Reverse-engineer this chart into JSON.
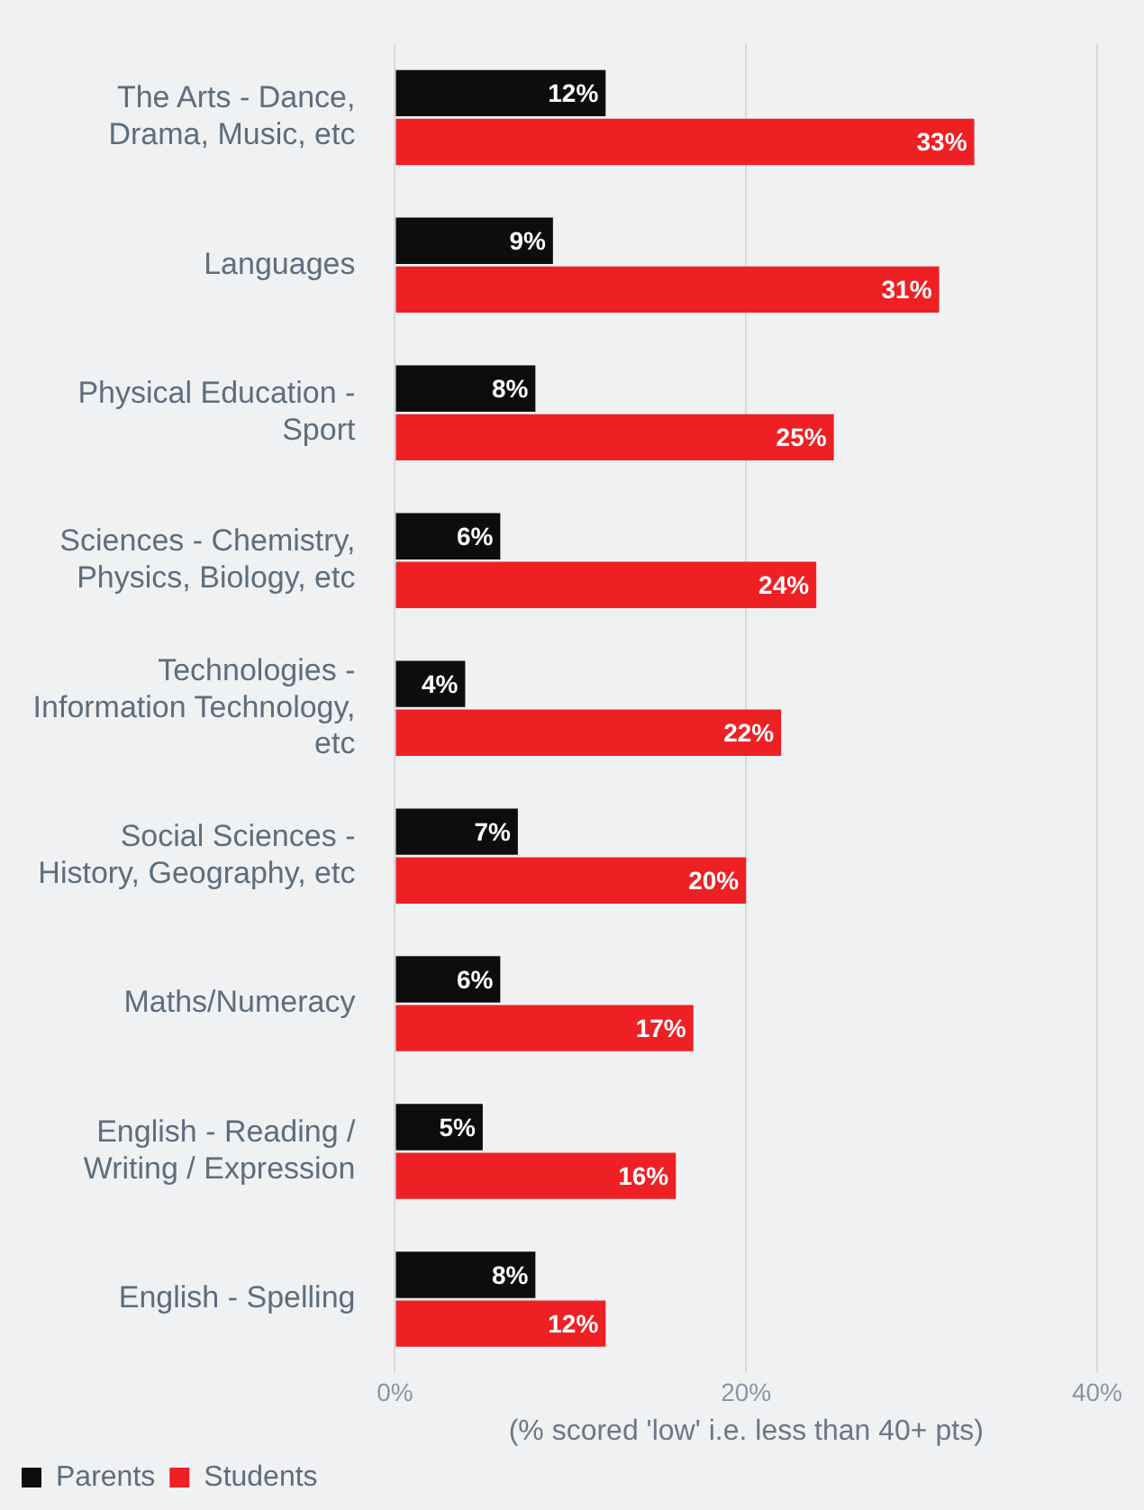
{
  "chart_data": {
    "type": "bar",
    "orientation": "horizontal",
    "categories": [
      "The Arts - Dance, Drama, Music, etc",
      "Languages",
      "Physical Education - Sport",
      "Sciences - Chemistry, Physics, Biology, etc",
      "Technologies - Information Technology, etc",
      "Social Sciences - History, Geography, etc",
      "Maths/Numeracy",
      "English - Reading / Writing / Expression",
      "English - Spelling"
    ],
    "series": [
      {
        "name": "Parents",
        "color": "#0d0d0d",
        "values": [
          12,
          9,
          8,
          6,
          4,
          7,
          6,
          5,
          8
        ],
        "value_labels": [
          "12%",
          "9%",
          "8%",
          "6%",
          "4%",
          "7%",
          "6%",
          "5%",
          "8%"
        ]
      },
      {
        "name": "Students",
        "color": "#ee2024",
        "values": [
          33,
          31,
          25,
          24,
          22,
          20,
          17,
          16,
          12
        ],
        "value_labels": [
          "33%",
          "31%",
          "25%",
          "24%",
          "22%",
          "20%",
          "17%",
          "16%",
          "12%"
        ]
      }
    ],
    "xlabel": "(% scored 'low' i.e. less than 40+ pts)",
    "xlim": [
      0,
      40
    ],
    "xticks": [
      {
        "value": 0,
        "label": "0%"
      },
      {
        "value": 20,
        "label": "20%"
      },
      {
        "value": 40,
        "label": "40%"
      }
    ],
    "grid": "x",
    "legend": "bottom left"
  }
}
